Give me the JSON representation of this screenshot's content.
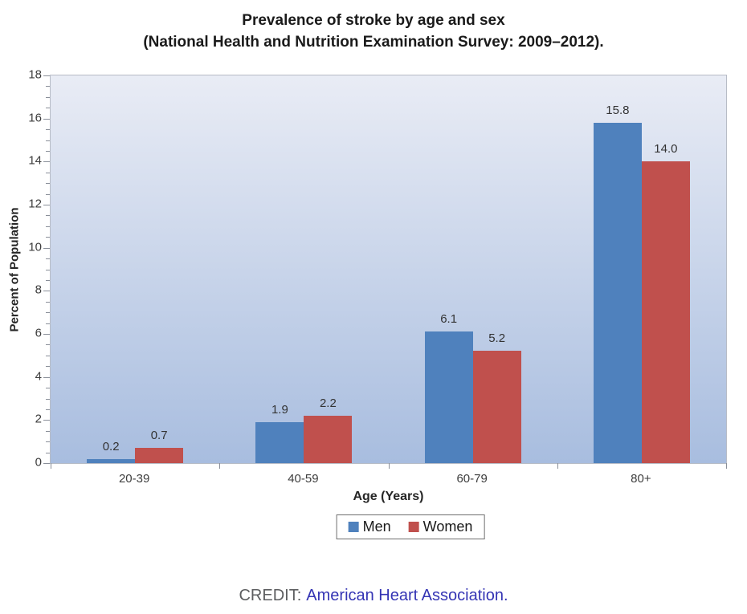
{
  "title": {
    "line1": "Prevalence of stroke by age and sex",
    "line2": "(National Health and Nutrition Examination Survey: 2009–2012)."
  },
  "chart_data": {
    "type": "bar",
    "categories": [
      "20-39",
      "40-59",
      "60-79",
      "80+"
    ],
    "series": [
      {
        "name": "Men",
        "color": "#4f81bd",
        "values": [
          0.2,
          1.9,
          6.1,
          15.8
        ]
      },
      {
        "name": "Women",
        "color": "#c0504d",
        "values": [
          0.7,
          2.2,
          5.2,
          14.0
        ]
      }
    ],
    "title": "Prevalence of stroke by age and sex (National Health and Nutrition Examination Survey: 2009–2012).",
    "xlabel": "Age (Years)",
    "ylabel": "Percent of Population",
    "ylim": [
      0,
      18
    ],
    "y_tick_step": 2,
    "y_minor_tick_step": 0.5,
    "grid": false,
    "legend_position": "bottom",
    "data_labels_decimals": 1,
    "plot_bg_top": "#e9ecf5",
    "plot_bg_bottom": "#a8bddf"
  },
  "credit": {
    "prefix": "CREDIT:",
    "link": "American Heart Association."
  }
}
